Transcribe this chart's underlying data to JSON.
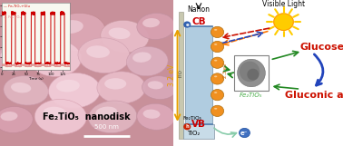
{
  "fig_width": 3.78,
  "fig_height": 1.61,
  "dpi": 100,
  "bg_color": "#ffffff",
  "left_panel_color": "#c8909a",
  "inset_line_color_glu": "#cc0000",
  "inset_line_color_base": "#dd8888",
  "inset_title": "Fe₂TiO₅+Glu",
  "inset_base_label": "Fe₂TiO₅",
  "main_label": "Fe₂TiO₅  nanodisk",
  "scale_bar": "500 nm",
  "band_gap_label": "3.2 eV",
  "cb_label": "CB",
  "vb_label": "VB",
  "tio2_label": "TiO₂",
  "fe2tio5_label1": "Fe₂TiO₅",
  "fe2tio5_label2": "Fe₂TiO₅",
  "nafion_label": "Nafion",
  "feo_label": "2.3 eV",
  "visible_light_label": "Visible Light",
  "glucose_label": "Glucose",
  "gluconic_label": "Gluconic acid",
  "ito_label": "ITO",
  "band_rect_color": "#b0cce0",
  "ball_color": "#f09020",
  "electron_color": "#3060b0",
  "cb_color": "#cc0000",
  "vb_color": "#cc0000",
  "glucose_color": "#cc1100",
  "gluconic_color": "#cc1100",
  "fe2tio5_green_color": "#44aa44",
  "sun_color": "#ffcc00",
  "sun_ray_color": "#ffcc00",
  "sun_outline": "#ff9900",
  "arrow_red": "#cc1100",
  "arrow_orange": "#ff7700",
  "arrow_blue": "#2244bb",
  "arrow_yellow": "#ddaa00",
  "arrow_green": "#228822",
  "arrow_teal": "#88ccaa"
}
